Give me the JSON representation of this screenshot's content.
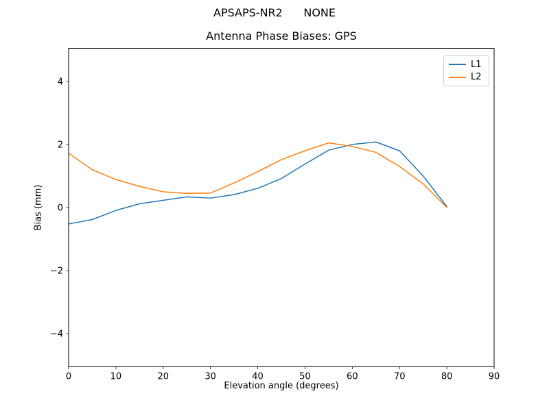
{
  "figure": {
    "suptitle": "APSAPS-NR2      NONE"
  },
  "chart_data": {
    "type": "line",
    "title": "Antenna Phase Biases: GPS",
    "xlabel": "Elevation angle (degrees)",
    "ylabel": "Bias (mm)",
    "xlim": [
      0,
      90
    ],
    "ylim": [
      -5.05,
      5.05
    ],
    "xticks": [
      0,
      10,
      20,
      30,
      40,
      50,
      60,
      70,
      80,
      90
    ],
    "yticks": [
      -4,
      -2,
      0,
      2,
      4
    ],
    "grid": false,
    "legend": {
      "position": "upper right"
    },
    "x": [
      0,
      5,
      10,
      15,
      20,
      25,
      30,
      35,
      40,
      45,
      50,
      55,
      60,
      65,
      70,
      75,
      80
    ],
    "series": [
      {
        "name": "L1",
        "color": "#1f77b4",
        "values": [
          -0.52,
          -0.38,
          -0.09,
          0.12,
          0.23,
          0.34,
          0.3,
          0.41,
          0.61,
          0.92,
          1.38,
          1.82,
          2.0,
          2.08,
          1.8,
          1.0,
          0.03
        ]
      },
      {
        "name": "L2",
        "color": "#ff7f0e",
        "values": [
          1.72,
          1.2,
          0.89,
          0.67,
          0.5,
          0.45,
          0.46,
          0.78,
          1.14,
          1.52,
          1.8,
          2.05,
          1.94,
          1.75,
          1.3,
          0.75,
          0.0
        ]
      }
    ]
  }
}
